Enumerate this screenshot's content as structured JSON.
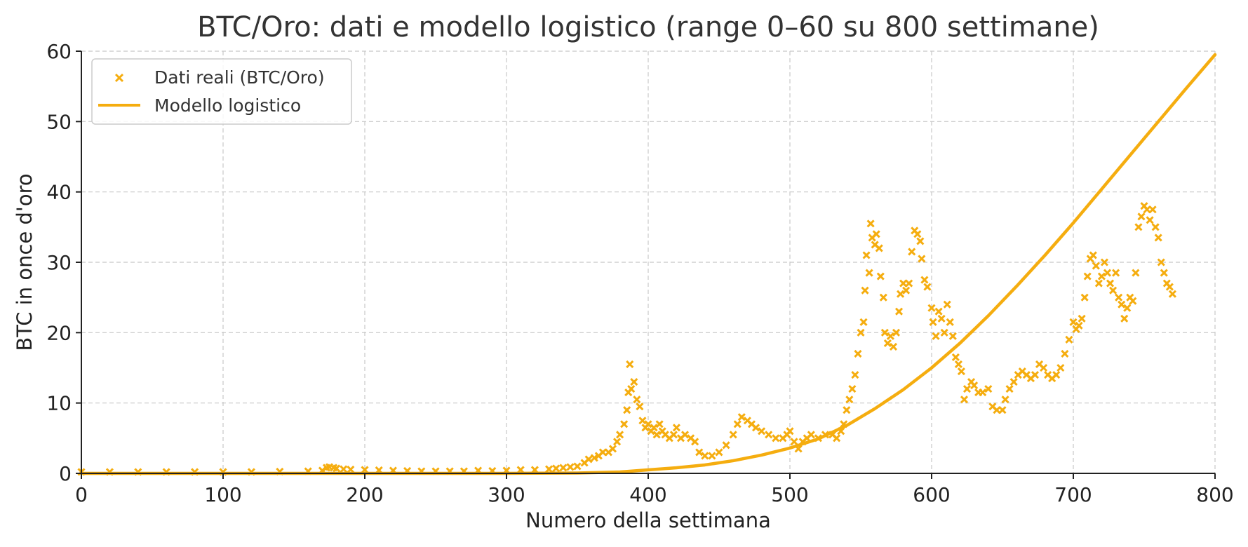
{
  "chart_data": {
    "type": "scatter",
    "title": "BTC/Oro: dati e modello logistico (range 0–60 su 800 settimane)",
    "xlabel": "Numero della settimana",
    "ylabel": "BTC in once d'oro",
    "xlim": [
      0,
      800
    ],
    "ylim": [
      0,
      60
    ],
    "xticks": [
      0,
      100,
      200,
      300,
      400,
      500,
      600,
      700,
      800
    ],
    "yticks": [
      0,
      10,
      20,
      30,
      40,
      50,
      60
    ],
    "xtick_labels": [
      "0",
      "100",
      "200",
      "300",
      "400",
      "500",
      "600",
      "700",
      "800"
    ],
    "ytick_labels": [
      "0",
      "10",
      "20",
      "30",
      "40",
      "50",
      "60"
    ],
    "grid": true,
    "legend_position": "top-left",
    "colors": {
      "series": "#f5ad0f",
      "axis": "#222222",
      "grid": "#c8c8c8"
    },
    "series": [
      {
        "name": "Dati reali (BTC/Oro)",
        "type": "scatter",
        "marker": "x",
        "color": "#f5ad0f",
        "points": [
          [
            0,
            0.2
          ],
          [
            20,
            0.2
          ],
          [
            40,
            0.2
          ],
          [
            60,
            0.2
          ],
          [
            80,
            0.2
          ],
          [
            100,
            0.2
          ],
          [
            120,
            0.2
          ],
          [
            140,
            0.25
          ],
          [
            160,
            0.3
          ],
          [
            170,
            0.4
          ],
          [
            173,
            0.8
          ],
          [
            175,
            0.9
          ],
          [
            178,
            0.8
          ],
          [
            180,
            0.7
          ],
          [
            185,
            0.6
          ],
          [
            190,
            0.55
          ],
          [
            200,
            0.5
          ],
          [
            210,
            0.45
          ],
          [
            220,
            0.4
          ],
          [
            230,
            0.35
          ],
          [
            240,
            0.3
          ],
          [
            250,
            0.3
          ],
          [
            260,
            0.3
          ],
          [
            270,
            0.3
          ],
          [
            280,
            0.4
          ],
          [
            290,
            0.35
          ],
          [
            300,
            0.4
          ],
          [
            310,
            0.5
          ],
          [
            320,
            0.5
          ],
          [
            330,
            0.6
          ],
          [
            335,
            0.7
          ],
          [
            340,
            0.8
          ],
          [
            345,
            0.9
          ],
          [
            350,
            1.0
          ],
          [
            355,
            1.5
          ],
          [
            358,
            2.0
          ],
          [
            362,
            2.2
          ],
          [
            365,
            2.5
          ],
          [
            368,
            3.0
          ],
          [
            372,
            3.0
          ],
          [
            375,
            3.5
          ],
          [
            378,
            4.5
          ],
          [
            380,
            5.5
          ],
          [
            383,
            7.0
          ],
          [
            385,
            9.0
          ],
          [
            386,
            11.5
          ],
          [
            387,
            15.5
          ],
          [
            388,
            12.0
          ],
          [
            390,
            13.0
          ],
          [
            392,
            10.5
          ],
          [
            394,
            9.5
          ],
          [
            396,
            7.5
          ],
          [
            398,
            6.5
          ],
          [
            400,
            7.0
          ],
          [
            402,
            6.0
          ],
          [
            404,
            6.5
          ],
          [
            406,
            5.5
          ],
          [
            408,
            7.0
          ],
          [
            410,
            6.0
          ],
          [
            412,
            5.5
          ],
          [
            415,
            5.0
          ],
          [
            418,
            5.5
          ],
          [
            420,
            6.5
          ],
          [
            423,
            5.0
          ],
          [
            426,
            5.5
          ],
          [
            430,
            5.0
          ],
          [
            433,
            4.5
          ],
          [
            436,
            3.0
          ],
          [
            440,
            2.5
          ],
          [
            445,
            2.5
          ],
          [
            450,
            3.0
          ],
          [
            455,
            4.0
          ],
          [
            460,
            5.5
          ],
          [
            463,
            7.0
          ],
          [
            466,
            8.0
          ],
          [
            470,
            7.5
          ],
          [
            473,
            7.0
          ],
          [
            476,
            6.5
          ],
          [
            480,
            6.0
          ],
          [
            485,
            5.5
          ],
          [
            490,
            5.0
          ],
          [
            495,
            5.0
          ],
          [
            498,
            5.5
          ],
          [
            500,
            6.0
          ],
          [
            503,
            4.5
          ],
          [
            506,
            3.5
          ],
          [
            509,
            4.5
          ],
          [
            512,
            5.0
          ],
          [
            515,
            5.5
          ],
          [
            520,
            5.0
          ],
          [
            525,
            5.5
          ],
          [
            530,
            5.5
          ],
          [
            533,
            5.0
          ],
          [
            536,
            6.0
          ],
          [
            538,
            7.0
          ],
          [
            540,
            9.0
          ],
          [
            542,
            10.5
          ],
          [
            544,
            12.0
          ],
          [
            546,
            14.0
          ],
          [
            548,
            17.0
          ],
          [
            550,
            20.0
          ],
          [
            552,
            21.5
          ],
          [
            553,
            26.0
          ],
          [
            554,
            31.0
          ],
          [
            556,
            28.5
          ],
          [
            557,
            35.5
          ],
          [
            558,
            33.5
          ],
          [
            560,
            32.5
          ],
          [
            561,
            34.0
          ],
          [
            563,
            32.0
          ],
          [
            564,
            28.0
          ],
          [
            566,
            25.0
          ],
          [
            567,
            20.0
          ],
          [
            569,
            18.5
          ],
          [
            571,
            19.5
          ],
          [
            573,
            18.0
          ],
          [
            575,
            20.0
          ],
          [
            577,
            23.0
          ],
          [
            578,
            25.5
          ],
          [
            580,
            27.0
          ],
          [
            582,
            26.0
          ],
          [
            584,
            27.0
          ],
          [
            586,
            31.5
          ],
          [
            588,
            34.5
          ],
          [
            590,
            34.0
          ],
          [
            592,
            33.0
          ],
          [
            593,
            30.5
          ],
          [
            595,
            27.5
          ],
          [
            597,
            26.5
          ],
          [
            600,
            23.5
          ],
          [
            601,
            21.5
          ],
          [
            603,
            19.5
          ],
          [
            605,
            23.0
          ],
          [
            607,
            22.0
          ],
          [
            609,
            20.0
          ],
          [
            611,
            24.0
          ],
          [
            613,
            21.5
          ],
          [
            615,
            19.5
          ],
          [
            617,
            16.5
          ],
          [
            619,
            15.5
          ],
          [
            621,
            14.5
          ],
          [
            623,
            10.5
          ],
          [
            625,
            12.0
          ],
          [
            628,
            13.0
          ],
          [
            630,
            12.5
          ],
          [
            633,
            11.5
          ],
          [
            636,
            11.5
          ],
          [
            640,
            12.0
          ],
          [
            643,
            9.5
          ],
          [
            646,
            9.0
          ],
          [
            650,
            9.0
          ],
          [
            652,
            10.5
          ],
          [
            655,
            12.0
          ],
          [
            658,
            13.0
          ],
          [
            661,
            14.0
          ],
          [
            664,
            14.5
          ],
          [
            667,
            14.0
          ],
          [
            670,
            13.5
          ],
          [
            673,
            14.0
          ],
          [
            676,
            15.5
          ],
          [
            679,
            15.0
          ],
          [
            682,
            14.0
          ],
          [
            685,
            13.5
          ],
          [
            688,
            14.0
          ],
          [
            691,
            15.0
          ],
          [
            694,
            17.0
          ],
          [
            697,
            19.0
          ],
          [
            700,
            21.5
          ],
          [
            702,
            20.5
          ],
          [
            704,
            21.0
          ],
          [
            706,
            22.0
          ],
          [
            708,
            25.0
          ],
          [
            710,
            28.0
          ],
          [
            712,
            30.5
          ],
          [
            714,
            31.0
          ],
          [
            716,
            29.5
          ],
          [
            718,
            27.0
          ],
          [
            720,
            28.0
          ],
          [
            722,
            30.0
          ],
          [
            724,
            28.5
          ],
          [
            726,
            27.0
          ],
          [
            728,
            26.0
          ],
          [
            730,
            28.5
          ],
          [
            732,
            25.0
          ],
          [
            734,
            24.0
          ],
          [
            736,
            22.0
          ],
          [
            738,
            23.5
          ],
          [
            740,
            25.0
          ],
          [
            742,
            24.5
          ],
          [
            744,
            28.5
          ],
          [
            746,
            35.0
          ],
          [
            748,
            36.5
          ],
          [
            750,
            38.0
          ],
          [
            752,
            37.5
          ],
          [
            754,
            36.0
          ],
          [
            756,
            37.5
          ],
          [
            758,
            35.0
          ],
          [
            760,
            33.5
          ],
          [
            762,
            30.0
          ],
          [
            764,
            28.5
          ],
          [
            766,
            27.0
          ],
          [
            768,
            26.5
          ],
          [
            770,
            25.5
          ]
        ]
      },
      {
        "name": "Modello logistico",
        "type": "line",
        "color": "#f5ad0f",
        "points": [
          [
            0,
            0.0
          ],
          [
            300,
            0.0
          ],
          [
            350,
            0.05
          ],
          [
            380,
            0.2
          ],
          [
            400,
            0.5
          ],
          [
            420,
            0.8
          ],
          [
            440,
            1.2
          ],
          [
            460,
            1.8
          ],
          [
            480,
            2.6
          ],
          [
            500,
            3.6
          ],
          [
            520,
            4.9
          ],
          [
            540,
            6.8
          ],
          [
            560,
            9.2
          ],
          [
            580,
            11.9
          ],
          [
            600,
            15.0
          ],
          [
            620,
            18.5
          ],
          [
            640,
            22.4
          ],
          [
            660,
            26.6
          ],
          [
            680,
            31.0
          ],
          [
            700,
            35.6
          ],
          [
            720,
            40.4
          ],
          [
            740,
            45.2
          ],
          [
            760,
            50.0
          ],
          [
            780,
            54.8
          ],
          [
            800,
            59.5
          ]
        ]
      }
    ]
  }
}
